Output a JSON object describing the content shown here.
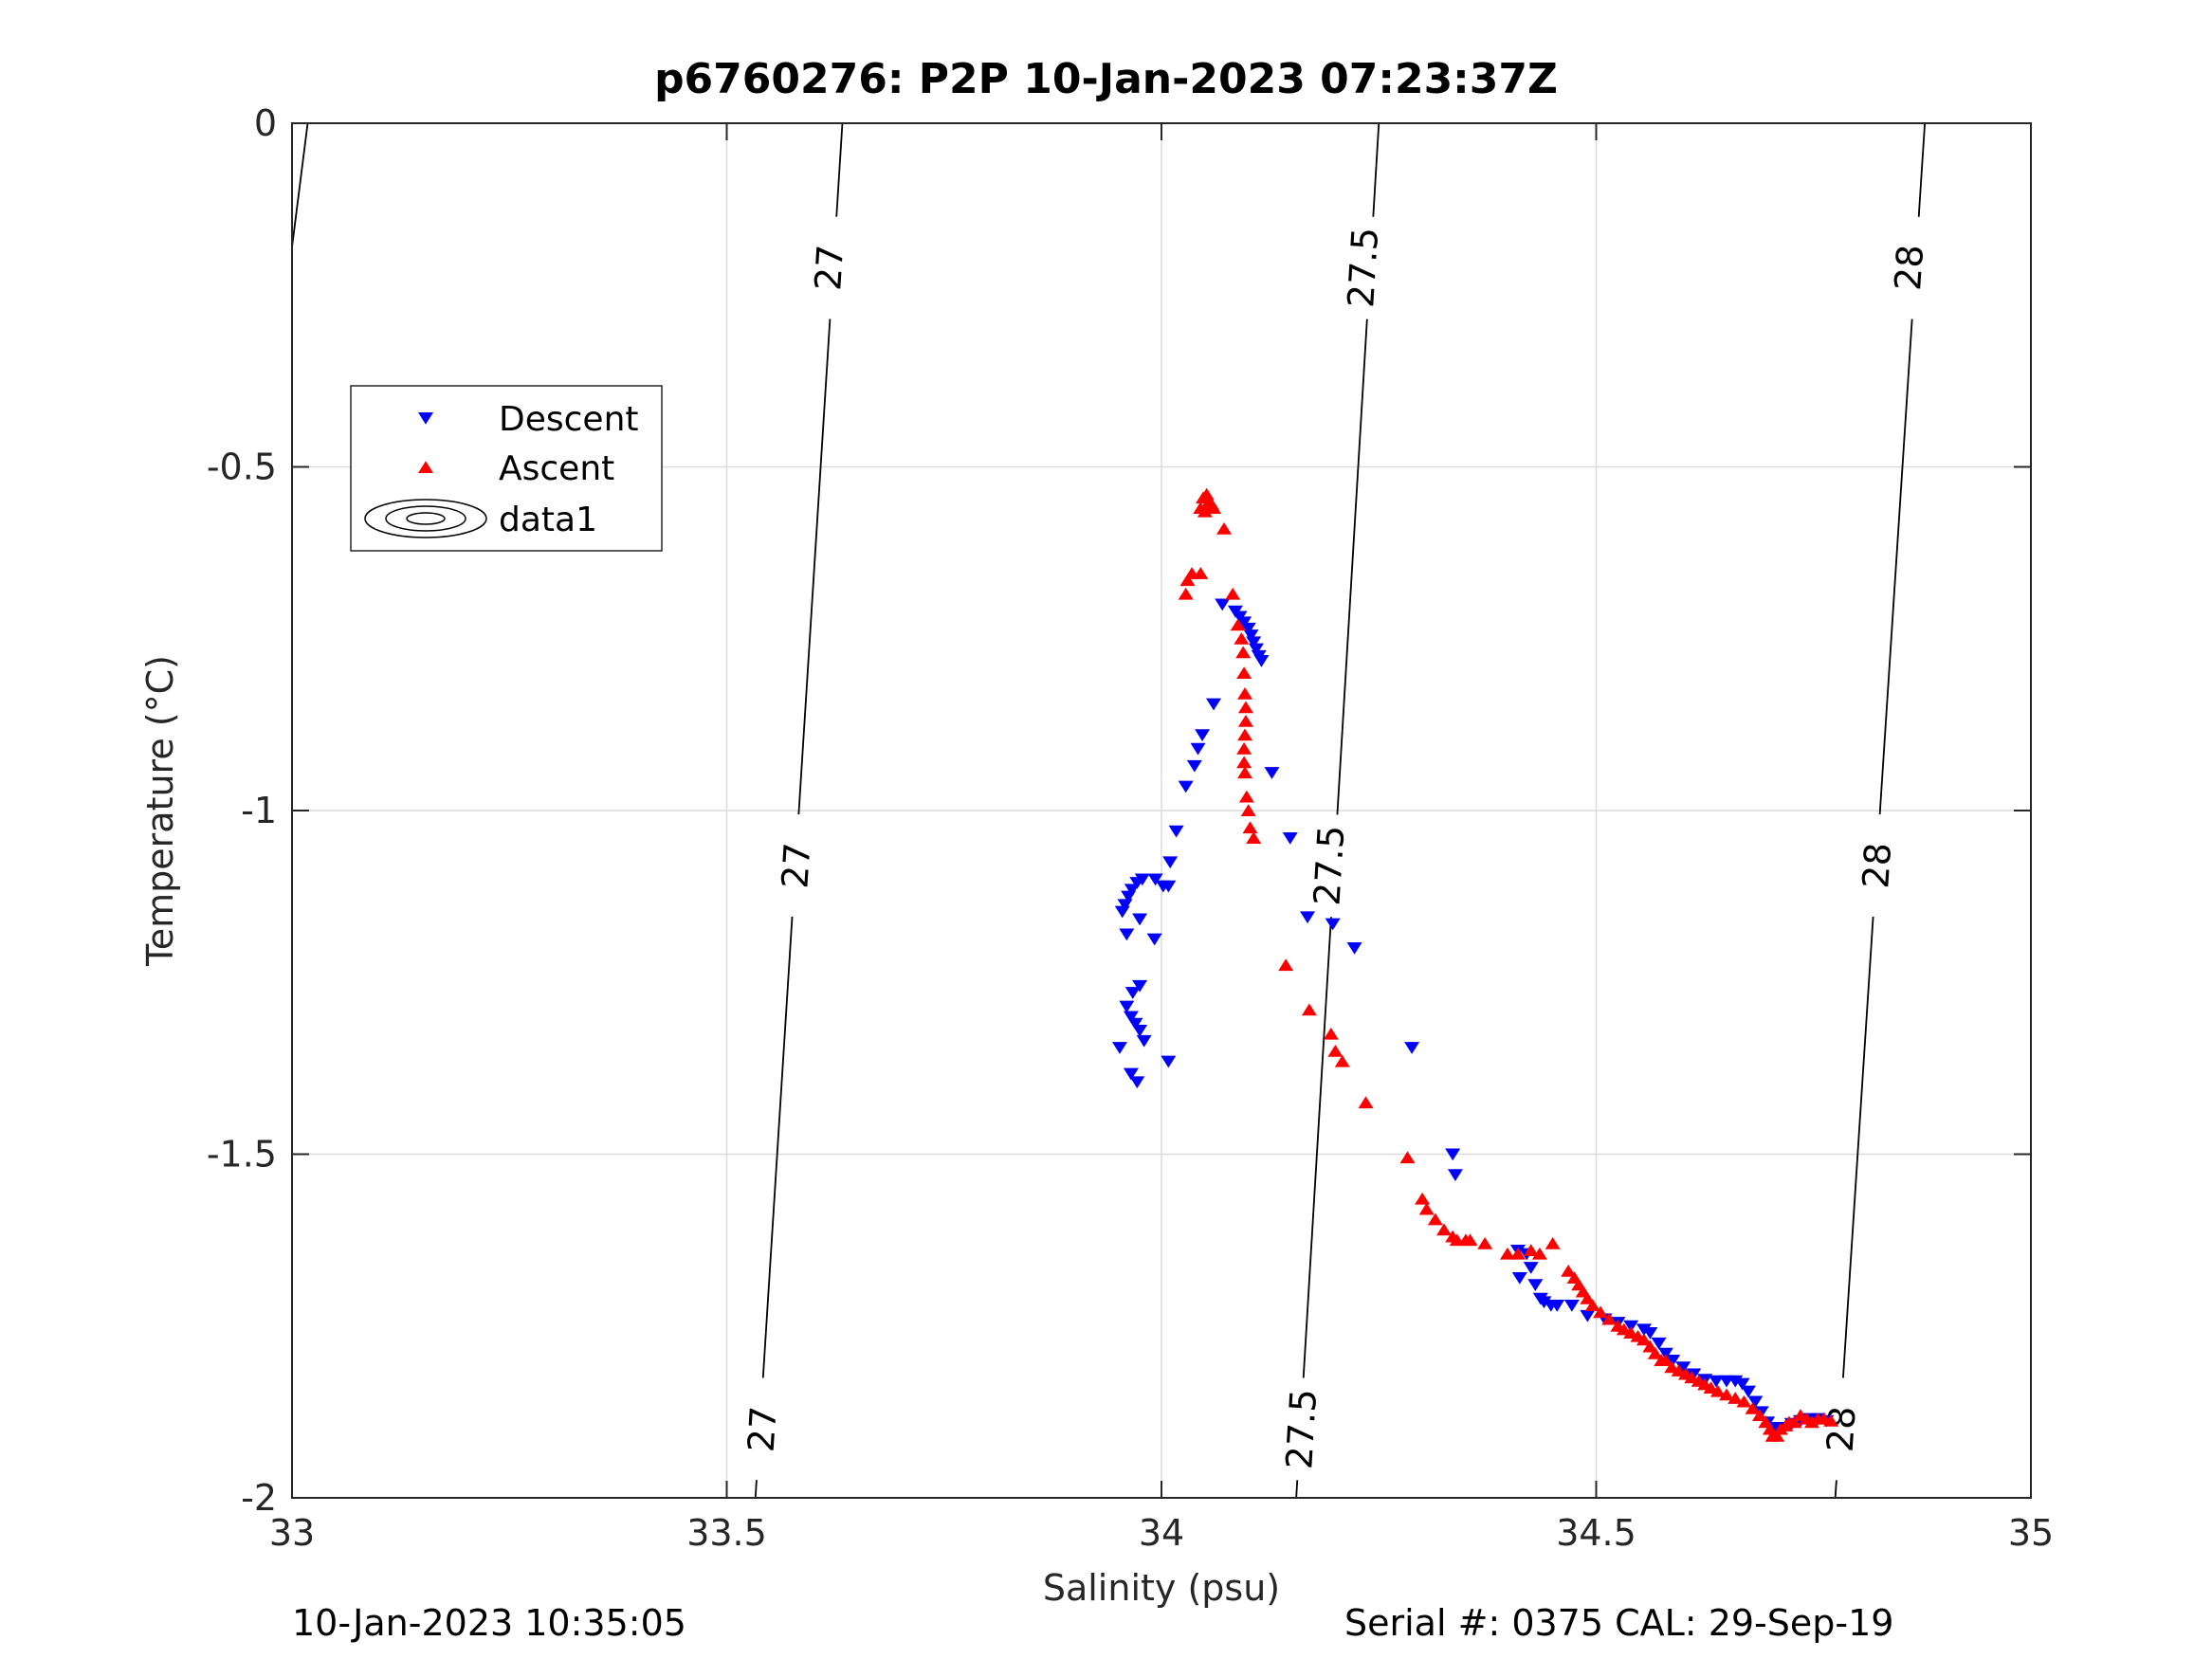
{
  "chart_data": {
    "type": "scatter",
    "title": "p6760276: P2P 10-Jan-2023 07:23:37Z",
    "xlabel": "Salinity (psu)",
    "ylabel": "Temperature (°C)",
    "xlim": [
      33,
      35
    ],
    "ylim": [
      -2,
      0
    ],
    "xticks": [
      "33",
      "33.5",
      "34",
      "34.5",
      "35"
    ],
    "yticks": [
      "-2",
      "-1.5",
      "-1",
      "-0.5",
      "0"
    ],
    "grid": true,
    "legend_position": "top-left",
    "legend": [
      "Descent",
      "Ascent",
      "data1"
    ],
    "series": [
      {
        "name": "Descent",
        "marker": "triangle-down",
        "color": "#0000ff",
        "points": [
          [
            33.955,
            -1.147
          ],
          [
            33.958,
            -1.137
          ],
          [
            33.962,
            -1.125
          ],
          [
            33.966,
            -1.115
          ],
          [
            33.972,
            -1.105
          ],
          [
            33.975,
            -1.158
          ],
          [
            33.96,
            -1.18
          ],
          [
            33.992,
            -1.187
          ],
          [
            33.978,
            -1.1
          ],
          [
            33.993,
            -1.1
          ],
          [
            34.002,
            -1.11
          ],
          [
            34.008,
            -1.11
          ],
          [
            34.01,
            -1.075
          ],
          [
            34.017,
            -1.03
          ],
          [
            34.028,
            -0.965
          ],
          [
            34.038,
            -0.935
          ],
          [
            34.042,
            -0.91
          ],
          [
            34.047,
            -0.89
          ],
          [
            34.06,
            -0.845
          ],
          [
            34.07,
            -0.7
          ],
          [
            34.085,
            -0.71
          ],
          [
            34.09,
            -0.718
          ],
          [
            34.095,
            -0.726
          ],
          [
            34.1,
            -0.735
          ],
          [
            34.103,
            -0.745
          ],
          [
            34.106,
            -0.755
          ],
          [
            34.109,
            -0.765
          ],
          [
            34.112,
            -0.775
          ],
          [
            34.115,
            -0.782
          ],
          [
            34.127,
            -0.945
          ],
          [
            34.148,
            -1.04
          ],
          [
            34.168,
            -1.155
          ],
          [
            34.197,
            -1.165
          ],
          [
            34.222,
            -1.2
          ],
          [
            33.975,
            -1.255
          ],
          [
            33.967,
            -1.265
          ],
          [
            33.96,
            -1.285
          ],
          [
            33.965,
            -1.3
          ],
          [
            33.97,
            -1.31
          ],
          [
            33.98,
            -1.335
          ],
          [
            33.975,
            -1.32
          ],
          [
            33.952,
            -1.345
          ],
          [
            33.965,
            -1.383
          ],
          [
            33.972,
            -1.395
          ],
          [
            34.008,
            -1.365
          ],
          [
            34.288,
            -1.345
          ],
          [
            34.335,
            -1.5
          ],
          [
            34.338,
            -1.53
          ],
          [
            34.41,
            -1.64
          ],
          [
            34.412,
            -1.68
          ],
          [
            34.42,
            -1.645
          ],
          [
            34.425,
            -1.665
          ],
          [
            34.43,
            -1.69
          ],
          [
            34.436,
            -1.71
          ],
          [
            34.44,
            -1.715
          ],
          [
            34.448,
            -1.72
          ],
          [
            34.455,
            -1.72
          ],
          [
            34.472,
            -1.72
          ],
          [
            34.49,
            -1.735
          ],
          [
            34.51,
            -1.74
          ],
          [
            34.525,
            -1.745
          ],
          [
            34.54,
            -1.75
          ],
          [
            34.555,
            -1.755
          ],
          [
            34.562,
            -1.76
          ],
          [
            34.572,
            -1.775
          ],
          [
            34.58,
            -1.79
          ],
          [
            34.588,
            -1.8
          ],
          [
            34.6,
            -1.81
          ],
          [
            34.612,
            -1.82
          ],
          [
            34.625,
            -1.828
          ],
          [
            34.638,
            -1.83
          ],
          [
            34.65,
            -1.83
          ],
          [
            34.66,
            -1.83
          ],
          [
            34.668,
            -1.834
          ],
          [
            34.675,
            -1.845
          ],
          [
            34.683,
            -1.86
          ],
          [
            34.69,
            -1.875
          ],
          [
            34.697,
            -1.89
          ],
          [
            34.705,
            -1.898
          ],
          [
            34.715,
            -1.898
          ],
          [
            34.725,
            -1.892
          ],
          [
            34.735,
            -1.888
          ],
          [
            34.745,
            -1.885
          ],
          [
            34.755,
            -1.885
          ],
          [
            34.765,
            -1.888
          ]
        ]
      },
      {
        "name": "Ascent",
        "marker": "triangle-up",
        "color": "#ff0000",
        "points": [
          [
            34.048,
            -0.545
          ],
          [
            34.052,
            -0.54
          ],
          [
            34.055,
            -0.55
          ],
          [
            34.058,
            -0.555
          ],
          [
            34.05,
            -0.565
          ],
          [
            34.045,
            -0.56
          ],
          [
            34.06,
            -0.56
          ],
          [
            34.072,
            -0.59
          ],
          [
            34.035,
            -0.655
          ],
          [
            34.03,
            -0.665
          ],
          [
            34.045,
            -0.655
          ],
          [
            34.028,
            -0.685
          ],
          [
            34.082,
            -0.685
          ],
          [
            34.088,
            -0.73
          ],
          [
            34.092,
            -0.75
          ],
          [
            34.094,
            -0.77
          ],
          [
            34.095,
            -0.8
          ],
          [
            34.096,
            -0.83
          ],
          [
            34.097,
            -0.85
          ],
          [
            34.097,
            -0.87
          ],
          [
            34.096,
            -0.89
          ],
          [
            34.095,
            -0.91
          ],
          [
            34.095,
            -0.93
          ],
          [
            34.096,
            -0.945
          ],
          [
            34.098,
            -0.98
          ],
          [
            34.1,
            -1.0
          ],
          [
            34.102,
            -1.025
          ],
          [
            34.106,
            -1.04
          ],
          [
            34.143,
            -1.225
          ],
          [
            34.17,
            -1.29
          ],
          [
            34.195,
            -1.325
          ],
          [
            34.2,
            -1.35
          ],
          [
            34.208,
            -1.365
          ],
          [
            34.235,
            -1.425
          ],
          [
            34.283,
            -1.505
          ],
          [
            34.3,
            -1.565
          ],
          [
            34.305,
            -1.58
          ],
          [
            34.315,
            -1.595
          ],
          [
            34.325,
            -1.61
          ],
          [
            34.335,
            -1.62
          ],
          [
            34.34,
            -1.625
          ],
          [
            34.35,
            -1.625
          ],
          [
            34.355,
            -1.625
          ],
          [
            34.372,
            -1.63
          ],
          [
            34.398,
            -1.645
          ],
          [
            34.41,
            -1.645
          ],
          [
            34.425,
            -1.64
          ],
          [
            34.435,
            -1.645
          ],
          [
            34.45,
            -1.63
          ],
          [
            34.468,
            -1.67
          ],
          [
            34.475,
            -1.68
          ],
          [
            34.48,
            -1.69
          ],
          [
            34.485,
            -1.7
          ],
          [
            34.49,
            -1.71
          ],
          [
            34.496,
            -1.72
          ],
          [
            34.505,
            -1.73
          ],
          [
            34.515,
            -1.74
          ],
          [
            34.525,
            -1.75
          ],
          [
            34.532,
            -1.755
          ],
          [
            34.54,
            -1.76
          ],
          [
            34.548,
            -1.765
          ],
          [
            34.555,
            -1.77
          ],
          [
            34.562,
            -1.78
          ],
          [
            34.568,
            -1.79
          ],
          [
            34.575,
            -1.8
          ],
          [
            34.58,
            -1.8
          ],
          [
            34.587,
            -1.81
          ],
          [
            34.595,
            -1.815
          ],
          [
            34.603,
            -1.82
          ],
          [
            34.61,
            -1.825
          ],
          [
            34.618,
            -1.83
          ],
          [
            34.625,
            -1.835
          ],
          [
            34.632,
            -1.84
          ],
          [
            34.64,
            -1.845
          ],
          [
            34.65,
            -1.85
          ],
          [
            34.66,
            -1.855
          ],
          [
            34.67,
            -1.86
          ],
          [
            34.68,
            -1.87
          ],
          [
            34.688,
            -1.88
          ],
          [
            34.695,
            -1.89
          ],
          [
            34.7,
            -1.9
          ],
          [
            34.703,
            -1.91
          ],
          [
            34.708,
            -1.91
          ],
          [
            34.712,
            -1.9
          ],
          [
            34.718,
            -1.895
          ],
          [
            34.722,
            -1.89
          ],
          [
            34.728,
            -1.89
          ],
          [
            34.735,
            -1.88
          ],
          [
            34.742,
            -1.885
          ],
          [
            34.748,
            -1.89
          ],
          [
            34.755,
            -1.885
          ],
          [
            34.762,
            -1.885
          ],
          [
            34.77,
            -1.888
          ]
        ]
      }
    ],
    "contours": [
      {
        "label": "27",
        "points": [
          [
            33.633,
            0
          ],
          [
            33.533,
            -2
          ]
        ],
        "label_positions": [
          [
            33.618,
            -0.21
          ],
          [
            33.58,
            -1.08
          ],
          [
            33.541,
            -1.9
          ]
        ]
      },
      {
        "label": "27.5",
        "points": [
          [
            34.25,
            0
          ],
          [
            34.155,
            -2
          ]
        ],
        "label_positions": [
          [
            34.232,
            -0.21
          ],
          [
            34.193,
            -1.08
          ],
          [
            34.161,
            -1.9
          ]
        ]
      },
      {
        "label": "28",
        "points": [
          [
            34.878,
            0
          ],
          [
            34.775,
            -2
          ]
        ],
        "label_positions": [
          [
            34.86,
            -0.21
          ],
          [
            34.823,
            -1.08
          ],
          [
            34.782,
            -1.9
          ]
        ]
      },
      {
        "label": "",
        "points": [
          [
            33.018,
            0
          ],
          [
            33.0,
            -0.18
          ]
        ],
        "label_positions": []
      }
    ]
  },
  "footer": {
    "left": "10-Jan-2023 10:35:05",
    "right": "Serial #: 0375  CAL: 29-Sep-19"
  }
}
